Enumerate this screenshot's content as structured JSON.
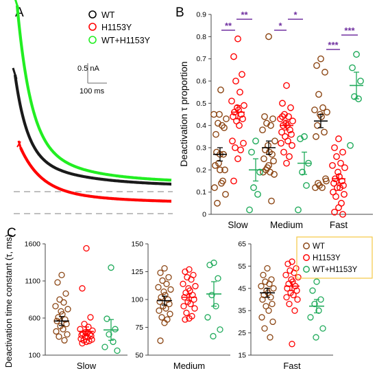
{
  "panels": {
    "a": "A",
    "b": "B",
    "c": "C"
  },
  "scalebar": {
    "current": "0.5 nA",
    "time": "100 ms"
  },
  "colors": {
    "wt": "#8B4513",
    "mut": "#ff0000",
    "co": "#1faa5a",
    "purple": "#7030a0",
    "trace_wt": "#1a1a1a",
    "trace_mut": "#ff0000",
    "trace_co": "#22ee22"
  },
  "legend_a": [
    "WT",
    "H1153Y",
    "WT+H1153Y"
  ],
  "legend_c": [
    "WT",
    "H1153Y",
    "WT+H1153Y"
  ],
  "chart_data": [
    {
      "type": "line",
      "panel": "A",
      "series": [
        {
          "name": "WT",
          "description": "deactivation current trace",
          "color": "#1a1a1a"
        },
        {
          "name": "H1153Y",
          "description": "deactivation current trace",
          "color": "#ff0000"
        },
        {
          "name": "WT+H1153Y",
          "description": "deactivation current trace",
          "color": "#22ee22"
        }
      ],
      "scalebar": {
        "current_nA": 0.5,
        "time_ms": 100
      }
    },
    {
      "type": "scatter",
      "panel": "B",
      "ylabel": "Deactivation τ proportion",
      "ylim": [
        0,
        0.9
      ],
      "yticks": [
        "0",
        "0.1",
        "0.2",
        "0.3",
        "0.4",
        "0.5",
        "0.6",
        "0.7",
        "0.8",
        "0.9"
      ],
      "categories": [
        "Slow",
        "Medium",
        "Fast"
      ],
      "series": [
        {
          "name": "WT",
          "color": "#8B4513",
          "points": [
            [
              0.27,
              0.36,
              0.39,
              0.41,
              0.4,
              0.45,
              0.43,
              0.45,
              0.56,
              0.28,
              0.27,
              0.22,
              0.2,
              0.23,
              0.14,
              0.12,
              0.09,
              0.05,
              0.15,
              0.2
            ],
            [
              0.8,
              0.44,
              0.43,
              0.41,
              0.4,
              0.38,
              0.33,
              0.31,
              0.28,
              0.29,
              0.27,
              0.25,
              0.24,
              0.21,
              0.19,
              0.19,
              0.18,
              0.2,
              0.06,
              0.22
            ],
            [
              0.7,
              0.67,
              0.64,
              0.54,
              0.48,
              0.47,
              0.46,
              0.45,
              0.44,
              0.4,
              0.37,
              0.35,
              0.16,
              0.13,
              0.12,
              0.12,
              0.15,
              0.14
            ]
          ],
          "mean": [
            0.27,
            0.3,
            0.42
          ],
          "sem": [
            0.03,
            0.03,
            0.03
          ]
        },
        {
          "name": "H1153Y",
          "color": "#ff0000",
          "points": [
            [
              0.79,
              0.71,
              0.63,
              0.6,
              0.55,
              0.51,
              0.49,
              0.48,
              0.47,
              0.46,
              0.45,
              0.44,
              0.43,
              0.42,
              0.4,
              0.33,
              0.32,
              0.3,
              0.29,
              0.25,
              0.15
            ],
            [
              0.58,
              0.5,
              0.48,
              0.45,
              0.44,
              0.43,
              0.42,
              0.41,
              0.4,
              0.4,
              0.38,
              0.37,
              0.36,
              0.35,
              0.33,
              0.32,
              0.31,
              0.28,
              0.26,
              0.23,
              0.44
            ],
            [
              0.34,
              0.3,
              0.28,
              0.26,
              0.23,
              0.22,
              0.21,
              0.19,
              0.17,
              0.16,
              0.15,
              0.14,
              0.13,
              0.12,
              0.12,
              0.1,
              0.09,
              0.08,
              0.05,
              0.03,
              0.01,
              0.0
            ]
          ],
          "mean": [
            0.46,
            0.4,
            0.16
          ],
          "sem": [
            0.03,
            0.02,
            0.02
          ]
        },
        {
          "name": "WT+H1153Y",
          "color": "#1faa5a",
          "points": [
            [
              0.33,
              0.28,
              0.19,
              0.12,
              0.09,
              0.02
            ],
            [
              0.35,
              0.34,
              0.23,
              0.19,
              0.13,
              0.02
            ],
            [
              0.72,
              0.66,
              0.6,
              0.53,
              0.52,
              0.31
            ]
          ],
          "mean": [
            0.2,
            0.23,
            0.58
          ],
          "sem": [
            0.05,
            0.05,
            0.06
          ]
        }
      ],
      "significance": [
        {
          "group": "Slow",
          "label": "**",
          "between": [
            "WT",
            "H1153Y"
          ]
        },
        {
          "group": "Slow",
          "label": "**",
          "between": [
            "H1153Y",
            "WT+H1153Y"
          ]
        },
        {
          "group": "Medium",
          "label": "*",
          "between": [
            "WT",
            "H1153Y"
          ]
        },
        {
          "group": "Medium",
          "label": "*",
          "between": [
            "H1153Y",
            "WT+H1153Y"
          ]
        },
        {
          "group": "Fast",
          "label": "***",
          "between": [
            "WT",
            "H1153Y"
          ]
        },
        {
          "group": "Fast",
          "label": "***",
          "between": [
            "H1153Y",
            "WT+H1153Y"
          ]
        }
      ]
    },
    {
      "type": "scatter",
      "panel": "C",
      "ylabel": "Deactivation time constant (τ, ms)",
      "subplots": [
        {
          "xlabel": "Slow",
          "ylim": [
            100,
            1600
          ],
          "yticks": [
            "100",
            "600",
            "1100",
            "1600"
          ],
          "series": [
            {
              "name": "WT",
              "values": [
                1180,
                1080,
                930,
                850,
                810,
                760,
                720,
                690,
                650,
                610,
                580,
                560,
                520,
                490,
                450,
                420,
                380,
                350,
                300
              ],
              "mean": 560,
              "sem": 60
            },
            {
              "name": "H1153Y",
              "values": [
                1540,
                1000,
                610,
                520,
                480,
                450,
                430,
                410,
                400,
                390,
                380,
                370,
                360,
                350,
                340,
                320,
                310,
                300,
                290,
                280,
                260
              ],
              "mean": 420,
              "sem": 60
            },
            {
              "name": "WT+H1153Y",
              "values": [
                1280,
                590,
                450,
                380,
                280,
                210,
                160
              ],
              "mean": 440,
              "sem": 140
            }
          ]
        },
        {
          "xlabel": "Medium",
          "ylim": [
            50,
            150
          ],
          "yticks": [
            "50",
            "75",
            "100",
            "125",
            "150"
          ],
          "series": [
            {
              "name": "WT",
              "values": [
                128,
                124,
                120,
                117,
                114,
                111,
                109,
                107,
                104,
                102,
                100,
                98,
                96,
                94,
                92,
                90,
                87,
                84,
                82,
                79,
                63
              ],
              "mean": 99,
              "sem": 4
            },
            {
              "name": "H1153Y",
              "values": [
                127,
                125,
                122,
                120,
                118,
                114,
                112,
                110,
                108,
                106,
                104,
                102,
                100,
                98,
                96,
                94,
                92,
                88,
                85,
                83,
                82
              ],
              "mean": 102,
              "sem": 3
            },
            {
              "name": "WT+H1153Y",
              "values": [
                133,
                131,
                119,
                104,
                94,
                84,
                73,
                67
              ],
              "mean": 105,
              "sem": 11
            }
          ]
        },
        {
          "xlabel": "Fast",
          "ylim": [
            15,
            65
          ],
          "yticks": [
            "15",
            "25",
            "35",
            "45",
            "55",
            "65"
          ],
          "series": [
            {
              "name": "WT",
              "values": [
                54,
                51,
                49,
                48,
                47,
                46,
                45,
                44,
                43,
                42,
                41,
                40,
                38,
                37,
                35,
                32,
                30,
                27,
                23
              ],
              "mean": 43,
              "sem": 2
            },
            {
              "name": "H1153Y",
              "values": [
                57,
                56,
                54,
                53,
                52,
                51,
                50,
                49,
                48,
                47,
                46,
                45,
                44,
                43,
                42,
                41,
                40,
                38,
                35,
                20
              ],
              "mean": 46,
              "sem": 2
            },
            {
              "name": "WT+H1153Y",
              "values": [
                48,
                44,
                40,
                38,
                35,
                32,
                27,
                23
              ],
              "mean": 37,
              "sem": 3
            }
          ]
        }
      ]
    }
  ]
}
